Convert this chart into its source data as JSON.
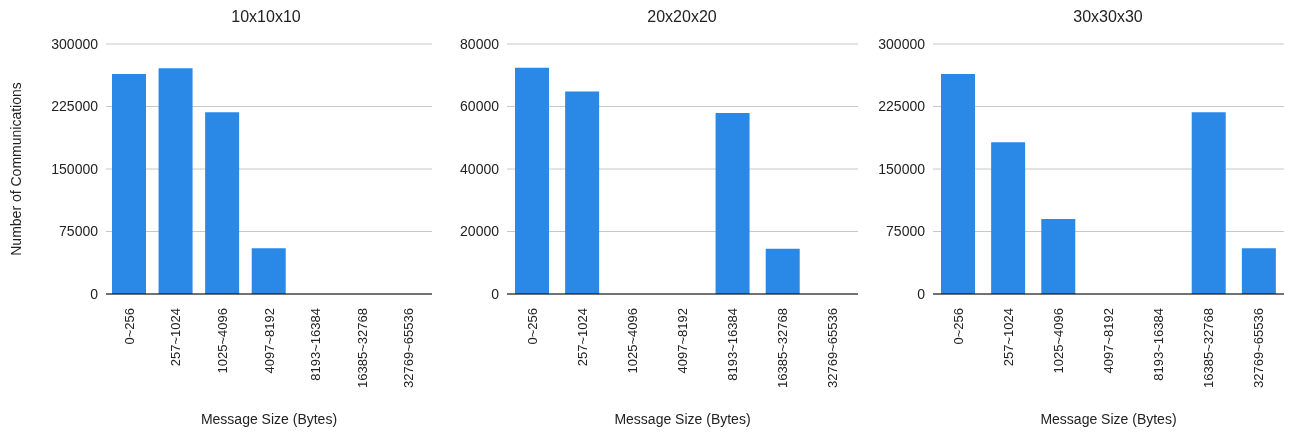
{
  "chart_data": [
    {
      "type": "bar",
      "title": "10x10x10",
      "xlabel": "Message Size (Bytes)",
      "ylabel": "Number of Communications",
      "categories": [
        "0~256",
        "257~1024",
        "1025~4096",
        "4097~8192",
        "8193~16384",
        "16385~32768",
        "32769~65536"
      ],
      "values": [
        264000,
        271000,
        218000,
        55000,
        0,
        0,
        0
      ],
      "color": "#2a88e6",
      "ylim": [
        0,
        300000
      ],
      "yticks": [
        0,
        75000,
        150000,
        225000,
        300000
      ],
      "grid": "y"
    },
    {
      "type": "bar",
      "title": "20x20x20",
      "xlabel": "Message Size (Bytes)",
      "categories": [
        "0~256",
        "257~1024",
        "1025~4096",
        "4097~8192",
        "8193~16384",
        "16385~32768",
        "32769~65536"
      ],
      "values": [
        72400,
        64800,
        0,
        0,
        57900,
        14500,
        0
      ],
      "color": "#2a88e6",
      "ylim": [
        0,
        80000
      ],
      "yticks": [
        0,
        20000,
        40000,
        60000,
        80000
      ],
      "grid": "y"
    },
    {
      "type": "bar",
      "title": "30x30x30",
      "xlabel": "Message Size (Bytes)",
      "categories": [
        "0~256",
        "257~1024",
        "1025~4096",
        "4097~8192",
        "8193~16384",
        "16385~32768",
        "32769~65536"
      ],
      "values": [
        264000,
        182000,
        90000,
        0,
        0,
        218000,
        55000
      ],
      "color": "#2a88e6",
      "ylim": [
        0,
        300000
      ],
      "yticks": [
        0,
        75000,
        150000,
        225000,
        300000
      ],
      "grid": "y"
    }
  ]
}
